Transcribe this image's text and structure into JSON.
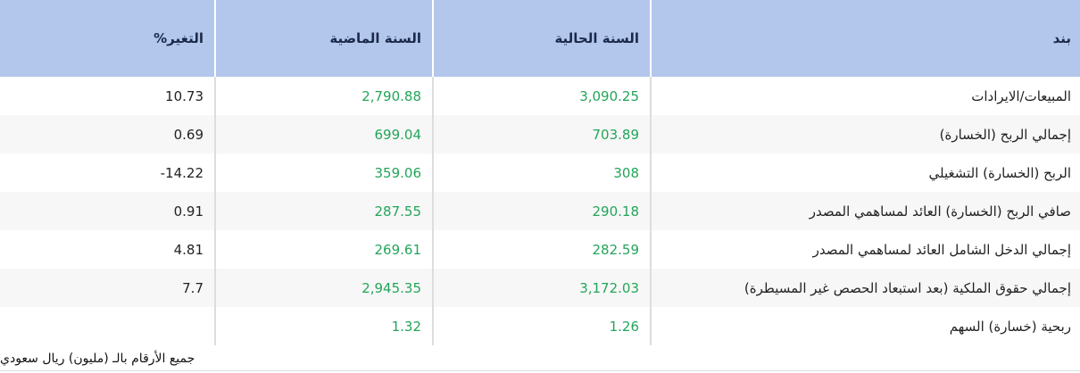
{
  "table": {
    "headers": [
      "بند",
      "السنة الحالية",
      "السنة الماضية",
      "التغير%"
    ],
    "rows": [
      {
        "item": "المبيعات/الايرادات",
        "current": "3,090.25",
        "previous": "2,790.88",
        "change": "10.73"
      },
      {
        "item": "إجمالي الربح (الخسارة)",
        "current": "703.89",
        "previous": "699.04",
        "change": "0.69"
      },
      {
        "item": "الربح (الخسارة) التشغيلي",
        "current": "308",
        "previous": "359.06",
        "change": "14.22-"
      },
      {
        "item": "صافي الربح (الخسارة) العائد لمساهمي المصدر",
        "current": "290.18",
        "previous": "287.55",
        "change": "0.91"
      },
      {
        "item": "إجمالي الدخل الشامل العائد لمساهمي المصدر",
        "current": "282.59",
        "previous": "269.61",
        "change": "4.81"
      },
      {
        "item": "إجمالي حقوق الملكية (بعد استبعاد الحصص غير المسيطرة)",
        "current": "3,172.03",
        "previous": "2,945.35",
        "change": "7.7"
      },
      {
        "item": "ربحية (خسارة) السهم",
        "current": "1.26",
        "previous": "1.32",
        "change": ""
      }
    ]
  },
  "footnote": "جميع الأرقام بالـ (مليون) ريال سعودي",
  "colors": {
    "header_bg": "#b3c6ec",
    "value_green": "#23a55a",
    "stripe": "#f7f7f7"
  }
}
